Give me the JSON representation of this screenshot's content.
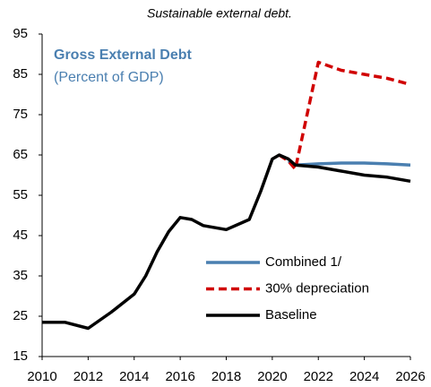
{
  "chart_data": {
    "type": "line",
    "title": "Sustainable external debt.",
    "annotations": [
      "Gross External Debt",
      "(Percent of GDP)"
    ],
    "x": [
      2010,
      2011,
      2012,
      2013,
      2014,
      2014.5,
      2015,
      2015.5,
      2016,
      2016.5,
      2017,
      2018,
      2019,
      2019.5,
      2020,
      2020.3,
      2020.7,
      2021,
      2022,
      2023,
      2024,
      2025,
      2026
    ],
    "series": [
      {
        "name": "Combined 1/",
        "color": "#4a7fb0",
        "dash": false,
        "values": [
          null,
          null,
          null,
          null,
          null,
          null,
          null,
          null,
          null,
          null,
          null,
          null,
          null,
          null,
          null,
          null,
          63.5,
          62.5,
          62.8,
          63,
          63,
          62.8,
          62.5
        ]
      },
      {
        "name": "30% depreciation",
        "color": "#d00000",
        "dash": true,
        "values": [
          null,
          null,
          null,
          null,
          null,
          null,
          null,
          null,
          null,
          null,
          null,
          null,
          null,
          null,
          null,
          65,
          63.5,
          61.5,
          88,
          86,
          85,
          84,
          82.5
        ]
      },
      {
        "name": "Baseline",
        "color": "#000000",
        "dash": false,
        "values": [
          23.5,
          23.5,
          22,
          26,
          30.5,
          35,
          41,
          46,
          49.5,
          49,
          47.5,
          46.5,
          49,
          56,
          64,
          65,
          64,
          62.5,
          62,
          61,
          60,
          59.5,
          58.5
        ]
      }
    ],
    "xlim": [
      2010,
      2026
    ],
    "xticks": [
      2010,
      2012,
      2014,
      2016,
      2018,
      2020,
      2022,
      2024,
      2026
    ],
    "ylim": [
      15,
      95
    ],
    "yticks": [
      15,
      25,
      35,
      45,
      55,
      65,
      75,
      85,
      95
    ],
    "legend": "lower right"
  }
}
